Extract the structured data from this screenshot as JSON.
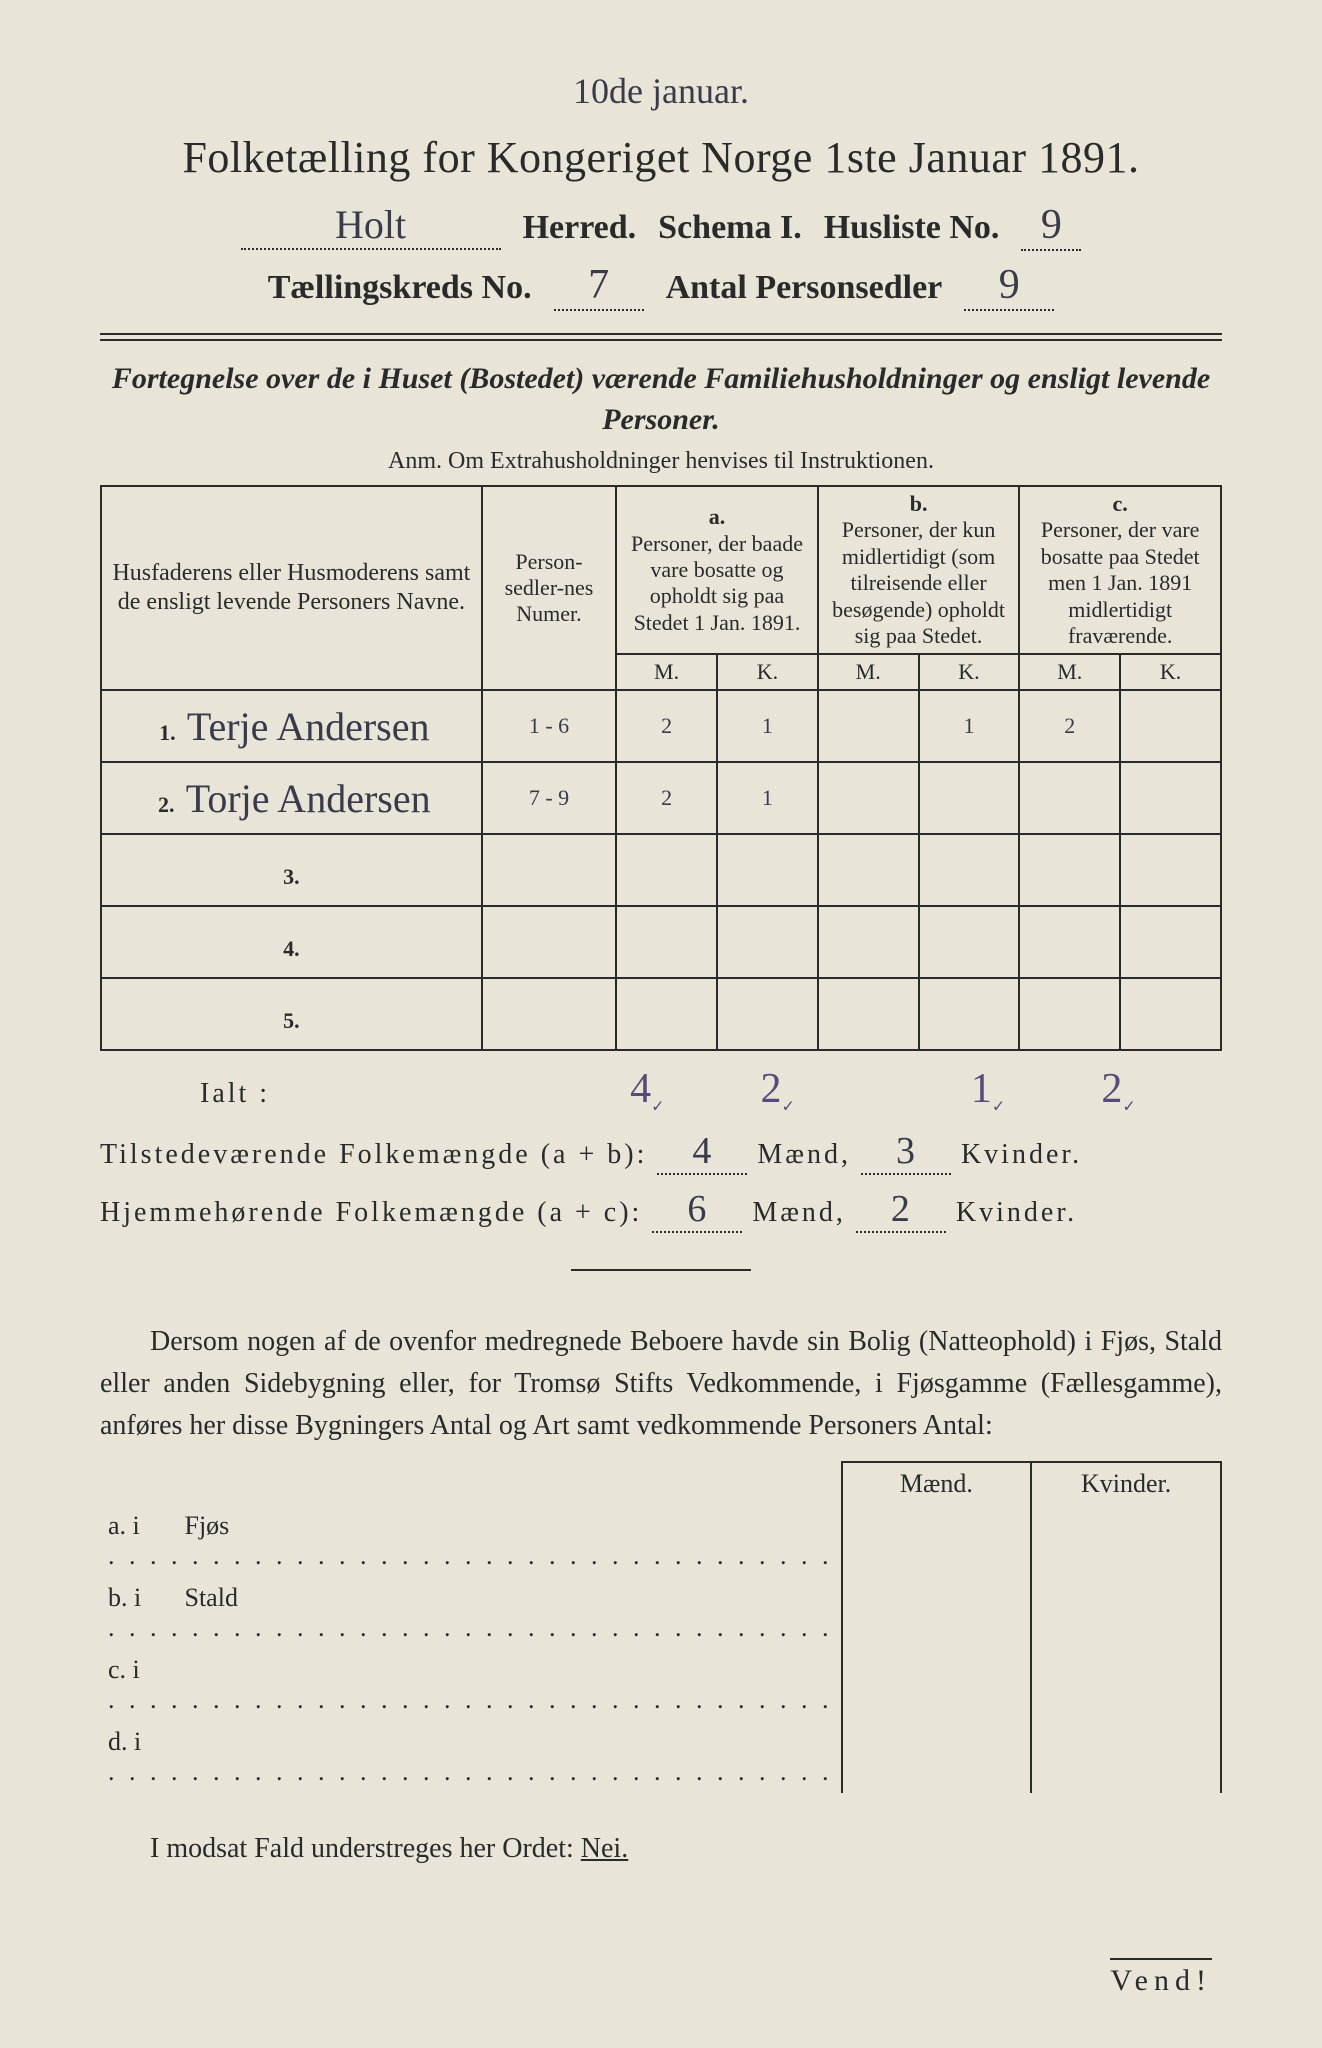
{
  "top_annotation": "10de januar.",
  "title": "Folketælling for Kongeriget Norge 1ste Januar 1891.",
  "header": {
    "herred_value": "Holt",
    "herred_label": "Herred.",
    "schema_label": "Schema I.",
    "husliste_label": "Husliste No.",
    "husliste_value": "9",
    "kreds_label": "Tællingskreds No.",
    "kreds_value": "7",
    "antal_label": "Antal Personsedler",
    "antal_value": "9"
  },
  "intro_italic": "Fortegnelse over de i Huset (Bostedet) værende Familiehusholdninger og ensligt levende Personer.",
  "anm": "Anm.  Om Extrahusholdninger henvises til Instruktionen.",
  "columns": {
    "names": "Husfaderens eller Husmoderens samt de ensligt levende Personers Navne.",
    "numer": "Person-sedler-nes Numer.",
    "a_label": "a.",
    "a_text": "Personer, der baade vare bosatte og opholdt sig paa Stedet 1 Jan. 1891.",
    "b_label": "b.",
    "b_text": "Personer, der kun midlertidigt (som tilreisende eller besøgende) opholdt sig paa Stedet.",
    "c_label": "c.",
    "c_text": "Personer, der vare bosatte paa Stedet men 1 Jan. 1891 midlertidigt fraværende.",
    "m": "M.",
    "k": "K."
  },
  "rows": [
    {
      "n": "1.",
      "name": "Terje Andersen",
      "numer": "1 - 6",
      "am": "2",
      "ak": "1",
      "bm": "",
      "bk": "1",
      "cm": "2",
      "ck": ""
    },
    {
      "n": "2.",
      "name": "Torje Andersen",
      "numer": "7 - 9",
      "am": "2",
      "ak": "1",
      "bm": "",
      "bk": "",
      "cm": "",
      "ck": ""
    },
    {
      "n": "3.",
      "name": "",
      "numer": "",
      "am": "",
      "ak": "",
      "bm": "",
      "bk": "",
      "cm": "",
      "ck": ""
    },
    {
      "n": "4.",
      "name": "",
      "numer": "",
      "am": "",
      "ak": "",
      "bm": "",
      "bk": "",
      "cm": "",
      "ck": ""
    },
    {
      "n": "5.",
      "name": "",
      "numer": "",
      "am": "",
      "ak": "",
      "bm": "",
      "bk": "",
      "cm": "",
      "ck": ""
    }
  ],
  "ialt": {
    "label": "Ialt :",
    "am": "4",
    "ak": "2",
    "bk": "1",
    "cm": "2"
  },
  "present": {
    "label": "Tilstedeværende Folkemængde (a + b):",
    "m": "4",
    "m_extra": "3",
    "m_label": "Mænd,",
    "k": "3",
    "k_label": "Kvinder."
  },
  "resident": {
    "label": "Hjemmehørende Folkemængde (a + c):",
    "m": "6",
    "m_label": "Mænd,",
    "k": "2",
    "k_label": "Kvinder."
  },
  "body_text": "Dersom nogen af de ovenfor medregnede Beboere havde sin Bolig (Natteophold) i Fjøs, Stald eller anden Sidebygning eller, for Tromsø Stifts Vedkommende, i Fjøsgamme (Fællesgamme), anføres her disse Bygningers Antal og Art samt vedkommende Personers Antal:",
  "lower": {
    "maend": "Mænd.",
    "kvinder": "Kvinder.",
    "rows": [
      {
        "l": "a.  i",
        "t": "Fjøs"
      },
      {
        "l": "b.  i",
        "t": "Stald"
      },
      {
        "l": "c.  i",
        "t": ""
      },
      {
        "l": "d.  i",
        "t": ""
      }
    ]
  },
  "footer": {
    "text_pre": "I modsat Fald understreges her Ordet: ",
    "nei": "Nei."
  },
  "vend": "Vend!"
}
